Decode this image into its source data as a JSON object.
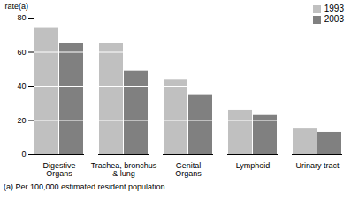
{
  "chart_data": {
    "type": "bar",
    "title": "rate(a)",
    "categories": [
      "Digestive\nOrgans",
      "Trachea, bronchus\n& lung",
      "Genital\nOrgans",
      "Lymphoid",
      "Urinary tract"
    ],
    "series": [
      {
        "name": "1993",
        "color": "#c0c0c0",
        "values": [
          74,
          65,
          44,
          26,
          15
        ]
      },
      {
        "name": "2003",
        "color": "#808080",
        "values": [
          65,
          49,
          35,
          23,
          13
        ]
      }
    ],
    "ylim": [
      0,
      80
    ],
    "yticks": [
      0,
      20,
      40,
      60,
      80
    ],
    "grid": true,
    "legend": "top-right",
    "annotations": [
      "(a) Per 100,000 estimated resident population."
    ]
  }
}
